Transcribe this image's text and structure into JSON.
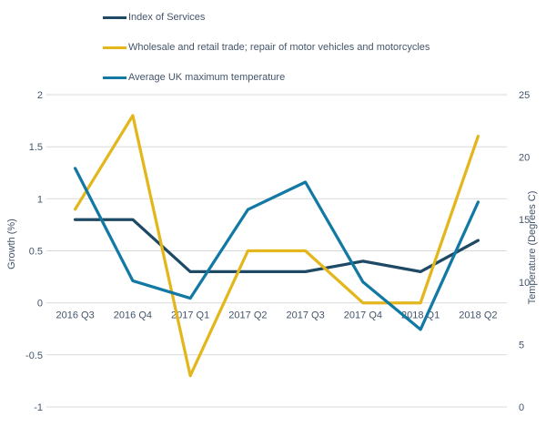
{
  "chart_data": {
    "type": "line",
    "categories": [
      "2016 Q3",
      "2016 Q4",
      "2017 Q1",
      "2017 Q2",
      "2017 Q3",
      "2017 Q4",
      "2018 Q1",
      "2018 Q2"
    ],
    "series": [
      {
        "name": "Index of Services",
        "axis": "left",
        "color": "#1f4a66",
        "values": [
          0.8,
          0.8,
          0.3,
          0.3,
          0.3,
          0.4,
          0.3,
          0.6
        ]
      },
      {
        "name": "Wholesale and retail trade; repair of motor vehicles and motorcycles",
        "axis": "left",
        "color": "#e3b71c",
        "values": [
          0.9,
          1.8,
          -0.7,
          0.5,
          0.5,
          0.0,
          0.0,
          1.6
        ]
      },
      {
        "name": "Average UK maximum temperature",
        "axis": "right",
        "color": "#1279a4",
        "values": [
          19.1,
          10.1,
          8.7,
          15.8,
          18.0,
          10.0,
          6.2,
          16.4
        ]
      }
    ],
    "left_axis": {
      "label": "Growth (%)",
      "min": -1,
      "max": 2,
      "ticks": [
        2,
        1.5,
        1,
        0.5,
        0,
        -0.5,
        -1
      ]
    },
    "right_axis": {
      "label": "Temperature (Degrees C)",
      "min": 0,
      "max": 25,
      "ticks": [
        25,
        20,
        15,
        10,
        5,
        0
      ]
    },
    "grid": true,
    "legend_position": "top-left",
    "colors": {
      "grid": "#d9d9d9",
      "text": "#44546a",
      "background": "#ffffff"
    }
  }
}
